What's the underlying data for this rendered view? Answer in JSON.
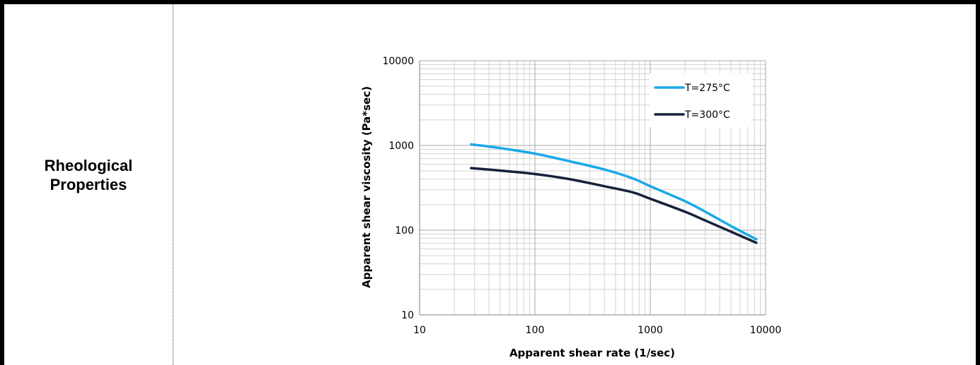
{
  "row_label": {
    "line1": "Rheological",
    "line2": "Properties"
  },
  "chart_data": {
    "type": "line",
    "xscale": "log",
    "yscale": "log",
    "xlim": [
      10,
      10000
    ],
    "ylim": [
      10,
      10000
    ],
    "xlabel": "Apparent shear rate (1/sec)",
    "ylabel": "Apparent shear viscosity (Pa*sec)",
    "x_ticks": [
      "10",
      "100",
      "1000",
      "10000"
    ],
    "y_ticks": [
      "10",
      "100",
      "1000",
      "10000"
    ],
    "grid": true,
    "legend_position": "top-right",
    "series": [
      {
        "name": "T=275°C",
        "color": "#1aa9e8",
        "x": [
          28,
          50,
          100,
          200,
          400,
          700,
          1000,
          2000,
          3000,
          5000,
          8300
        ],
        "y": [
          1030,
          930,
          800,
          650,
          520,
          410,
          330,
          220,
          165,
          112,
          78
        ]
      },
      {
        "name": "T=300°C",
        "color": "#16213a",
        "x": [
          28,
          50,
          100,
          200,
          400,
          700,
          1000,
          2000,
          3000,
          5000,
          8300
        ],
        "y": [
          540,
          505,
          460,
          400,
          330,
          280,
          235,
          165,
          130,
          96,
          71
        ]
      }
    ]
  }
}
